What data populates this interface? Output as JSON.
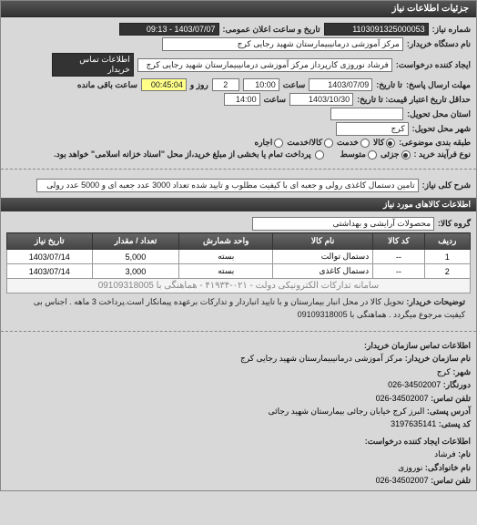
{
  "header": "جزئیات اطلاعات نیاز",
  "fields": {
    "need_number_label": "شماره نیاز:",
    "need_number": "1103091325000053",
    "announce_label": "تاریخ و ساعت اعلان عمومی:",
    "announce_value": "1403/07/07 - 09:13",
    "device_label": "نام دستگاه خریدار:",
    "device_value": "مرکز آموزشی درمانیبیمارستان شهید رجایی کرج",
    "creator_label": "ایجاد کننده درخواست:",
    "creator_value": "فرشاد نوروزی کارپرداز مرکز آموزشی درمانیبیمارستان شهید رجایی کرج",
    "contact_btn": "اطلاعات تماس خریدار",
    "deadline_label": "مهلت ارسال پاسخ:",
    "until_label": "تا تاریخ:",
    "date1": "1403/07/09",
    "time_label": "ساعت",
    "time1": "10:00",
    "day_label": "روز و",
    "day_val": "2",
    "remain_label": "ساعت باقی مانده",
    "remain_val": "00:45:04",
    "min_credit_label": "حداقل تاریخ اعتبار قیمت: تا تاریخ:",
    "date2": "1403/10/30",
    "time2": "14:00",
    "province_label": "استان محل تحویل:",
    "city_label": "شهر محل تحویل:",
    "city_value": "کرج",
    "category_label": "طبقه بندی موضوعی:",
    "cat_goods": "کالا",
    "cat_service": "خدمت",
    "cat_both": "کالا/خدمت",
    "cat_rent": "اجاره",
    "process_label": "نوع فرآیند خرید :",
    "process_low": "جزئی",
    "process_mid": "متوسط",
    "payment_note": "پرداخت تمام یا بخشی از مبلغ خرید،از محل \"اسناد خزانه اسلامی\" خواهد بود."
  },
  "desc": {
    "title_label": "شرح کلی نیاز:",
    "title_value": "تامین دستمال کاغذی رولی و جعبه ای با کیفیت مطلوب و تایید شده تعداد 3000 عدد جعبه ای و 5000 عدد رولی"
  },
  "items_header": "اطلاعات کالاهای مورد نیاز",
  "group_label": "گروه کالا:",
  "group_value": "محصولات آرایشی و بهداشتی",
  "table": {
    "columns": [
      "ردیف",
      "کد کالا",
      "نام کالا",
      "واحد شمارش",
      "تعداد / مقدار",
      "تاریخ نیاز"
    ],
    "rows": [
      [
        "1",
        "--",
        "دستمال توالت",
        "بسته",
        "5,000",
        "1403/07/14"
      ],
      [
        "2",
        "--",
        "دستمال کاغذی",
        "بسته",
        "3,000",
        "1403/07/14"
      ]
    ],
    "watermark": "سامانه تدارکات الکترونیکی دولت - ۰۲۱-۴۱۹۳۴ - هماهنگی با 09109318005"
  },
  "buyer_note_label": "توضیحات خریدار:",
  "buyer_note": "تحویل کالا در محل انبار بیمارستان و با تایید انباردار و تدارکات برعهده پیمانکار است.پرداخت 3 ماهه . اجناس بی کیفیت مرجوع میگردد . هماهنگی با 09109318005",
  "contact_header": "اطلاعات تماس سازمان خریدار:",
  "contact": {
    "org_label": "نام سازمان خریدار:",
    "org": "مرکز آموزشی درمانیبیمارستان شهید رجایی کرج",
    "city_label": "شهر:",
    "city": "کرج",
    "fax_label": "دورنگار:",
    "fax": "34502007-026",
    "phone_label": "تلفن تماس:",
    "phone": "34502007-026",
    "address_label": "آدرس پستی:",
    "address": "البرز کرج خیابان رجائی بیمارستان شهید رجائی",
    "postal_label": "کد پستی:",
    "postal": "3197635141"
  },
  "creator_header": "اطلاعات ایجاد کننده درخواست:",
  "creator": {
    "name_label": "نام:",
    "name": "فرشاد",
    "lastname_label": "نام خانوادگی:",
    "lastname": "نوروزی",
    "phone_label": "تلفن تماس:",
    "phone": "34502007-026"
  }
}
